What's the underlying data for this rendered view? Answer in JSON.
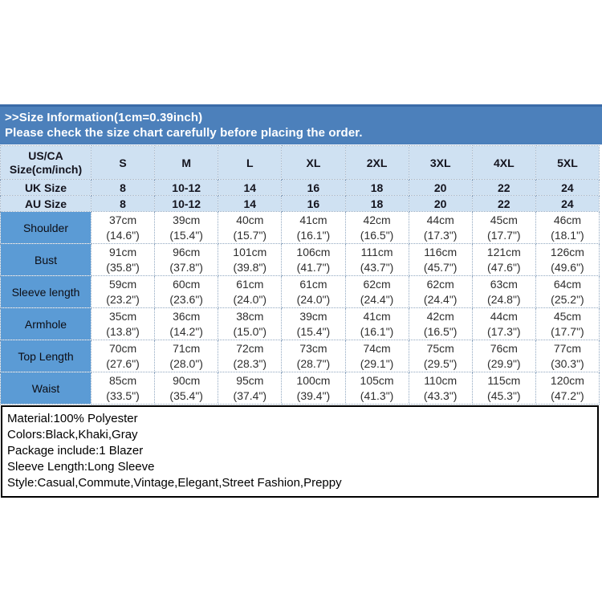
{
  "banner": {
    "title": ">>Size Information(1cm=0.39inch)",
    "subtitle": "Please check the size chart carefully before placing the order."
  },
  "table": {
    "corner_line1": "US/CA",
    "corner_line2": "Size(cm/inch)",
    "sizes": [
      "S",
      "M",
      "L",
      "XL",
      "2XL",
      "3XL",
      "4XL",
      "5XL"
    ],
    "uk_label": "UK Size",
    "uk_values": [
      "8",
      "10-12",
      "14",
      "16",
      "18",
      "20",
      "22",
      "24"
    ],
    "au_label": "AU Size",
    "au_values": [
      "8",
      "10-12",
      "14",
      "16",
      "18",
      "20",
      "22",
      "24"
    ],
    "rows": [
      {
        "label": "Shoulder",
        "cm": [
          "37cm",
          "39cm",
          "40cm",
          "41cm",
          "42cm",
          "44cm",
          "45cm",
          "46cm"
        ],
        "inch": [
          "(14.6\")",
          "(15.4\")",
          "(15.7\")",
          "(16.1\")",
          "(16.5\")",
          "(17.3\")",
          "(17.7\")",
          "(18.1\")"
        ]
      },
      {
        "label": "Bust",
        "cm": [
          "91cm",
          "96cm",
          "101cm",
          "106cm",
          "111cm",
          "116cm",
          "121cm",
          "126cm"
        ],
        "inch": [
          "(35.8\")",
          "(37.8\")",
          "(39.8\")",
          "(41.7\")",
          "(43.7\")",
          "(45.7\")",
          "(47.6\")",
          "(49.6\")"
        ]
      },
      {
        "label": "Sleeve length",
        "cm": [
          "59cm",
          "60cm",
          "61cm",
          "61cm",
          "62cm",
          "62cm",
          "63cm",
          "64cm"
        ],
        "inch": [
          "(23.2\")",
          "(23.6\")",
          "(24.0\")",
          "(24.0\")",
          "(24.4\")",
          "(24.4\")",
          "(24.8\")",
          "(25.2\")"
        ]
      },
      {
        "label": "Armhole",
        "cm": [
          "35cm",
          "36cm",
          "38cm",
          "39cm",
          "41cm",
          "42cm",
          "44cm",
          "45cm"
        ],
        "inch": [
          "(13.8\")",
          "(14.2\")",
          "(15.0\")",
          "(15.4\")",
          "(16.1\")",
          "(16.5\")",
          "(17.3\")",
          "(17.7\")"
        ]
      },
      {
        "label": "Top Length",
        "cm": [
          "70cm",
          "71cm",
          "72cm",
          "73cm",
          "74cm",
          "75cm",
          "76cm",
          "77cm"
        ],
        "inch": [
          "(27.6\")",
          "(28.0\")",
          "(28.3\")",
          "(28.7\")",
          "(29.1\")",
          "(29.5\")",
          "(29.9\")",
          "(30.3\")"
        ]
      },
      {
        "label": "Waist",
        "cm": [
          "85cm",
          "90cm",
          "95cm",
          "100cm",
          "105cm",
          "110cm",
          "115cm",
          "120cm"
        ],
        "inch": [
          "(33.5\")",
          "(35.4\")",
          "(37.4\")",
          "(39.4\")",
          "(41.3\")",
          "(43.3\")",
          "(45.3\")",
          "(47.2\")"
        ]
      }
    ]
  },
  "details": {
    "lines": [
      "Material:100% Polyester",
      "Colors:Black,Khaki,Gray",
      "Package include:1 Blazer",
      "Sleeve Length:Long Sleeve",
      "Style:Casual,Commute,Vintage,Elegant,Street Fashion,Preppy"
    ]
  },
  "colors": {
    "banner_bg": "#4c80bb",
    "header_cell_bg": "#cfe1f2",
    "label_column_bg": "#5b9bd5",
    "border_dotted": "#90a7c0",
    "banner_text": "#ffffff"
  }
}
